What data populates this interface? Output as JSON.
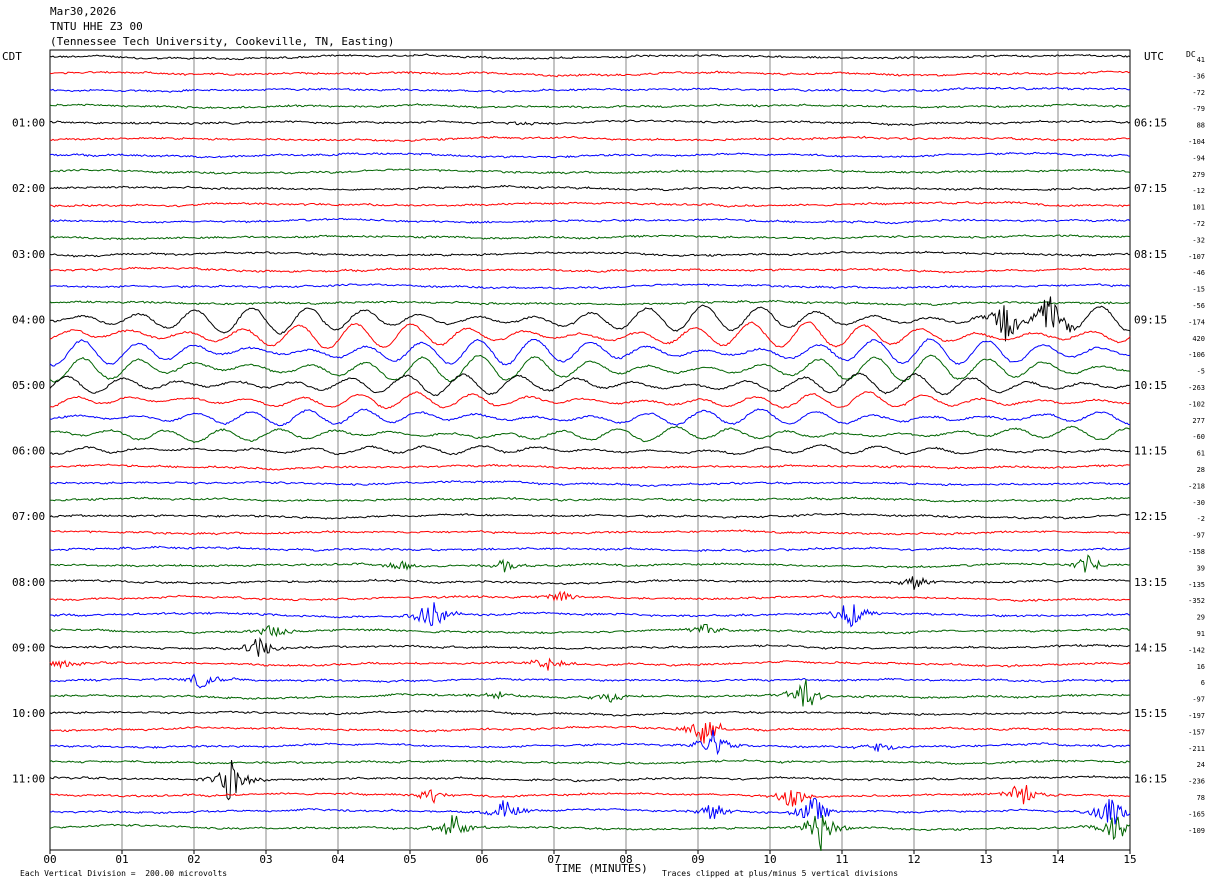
{
  "header": {
    "date": "Mar30,2026",
    "station": "TNTU HHE Z3 00",
    "location": "(Tennessee Tech University, Cookeville, TN, Easting)"
  },
  "left_zone_label": "CDT",
  "right_zone_label": "UTC",
  "dc_label": "DC",
  "footer": {
    "xlabel": "TIME (MINUTES)",
    "scale_note": "Each Vertical Division =  200.00 microvolts",
    "clip_note": "Traces clipped at plus/minus 5 vertical divisions"
  },
  "colors": {
    "line1": "#000000",
    "line2": "#ff0000",
    "line3": "#0000ff",
    "line4": "#006400",
    "grid": "#888888"
  },
  "chart_data": {
    "type": "line",
    "title": "TNTU HHE Z3 00",
    "xlabel": "TIME (MINUTES)",
    "xlim": [
      0,
      15
    ],
    "x_ticks": [
      "00",
      "01",
      "02",
      "03",
      "04",
      "05",
      "06",
      "07",
      "08",
      "09",
      "10",
      "11",
      "12",
      "13",
      "14",
      "15"
    ],
    "trace_minutes": 15,
    "left_hour_labels": [
      "01:00",
      "02:00",
      "03:00",
      "04:00",
      "05:00",
      "06:00",
      "07:00",
      "08:00",
      "09:00",
      "10:00",
      "11:00"
    ],
    "right_hour_labels": [
      "06:15",
      "07:15",
      "08:15",
      "09:15",
      "10:15",
      "11:15",
      "12:15",
      "13:15",
      "14:15",
      "15:15",
      "16:15"
    ],
    "dc_offsets": [
      41,
      -36,
      -72,
      -79,
      88,
      -104,
      -94,
      279,
      -12,
      101,
      -72,
      -32,
      -107,
      -46,
      -15,
      -56,
      -174,
      420,
      -106,
      -5,
      -263,
      -102,
      277,
      -60,
      61,
      28,
      -218,
      -30,
      -2,
      -97,
      -158,
      39,
      -135,
      -352,
      29,
      91,
      -142,
      16,
      6,
      -97,
      -197,
      -157,
      -211,
      24,
      -236,
      78,
      -165,
      -109
    ],
    "trace_colors": [
      "black",
      "red",
      "blue",
      "green"
    ],
    "events": [
      {
        "trace": 4,
        "minute": 6.5,
        "amp": 0.3
      },
      {
        "trace": 16,
        "minute": 7.5,
        "amp": 2.5,
        "kind": "microseism"
      },
      {
        "trace": 17,
        "minute": 7.5,
        "amp": 2.5,
        "kind": "microseism"
      },
      {
        "trace": 18,
        "minute": 7.5,
        "amp": 2.5,
        "kind": "microseism"
      },
      {
        "trace": 19,
        "minute": 7.5,
        "amp": 2.5,
        "kind": "microseism"
      },
      {
        "trace": 20,
        "minute": 7.5,
        "amp": 2.0,
        "kind": "microseism"
      },
      {
        "trace": 21,
        "minute": 7.5,
        "amp": 1.5,
        "kind": "microseism"
      },
      {
        "trace": 22,
        "minute": 7.5,
        "amp": 1.5,
        "kind": "microseism"
      },
      {
        "trace": 23,
        "minute": 7.5,
        "amp": 1.2,
        "kind": "microseism"
      },
      {
        "trace": 24,
        "minute": 7.5,
        "amp": 0.8,
        "kind": "microseism"
      },
      {
        "trace": 16,
        "minute": 13.3,
        "amp": 3.5
      },
      {
        "trace": 16,
        "minute": 13.9,
        "amp": 3.5
      },
      {
        "trace": 31,
        "minute": 4.9,
        "amp": 1.0
      },
      {
        "trace": 31,
        "minute": 6.3,
        "amp": 1.0
      },
      {
        "trace": 31,
        "minute": 14.4,
        "amp": 1.5
      },
      {
        "trace": 32,
        "minute": 12.0,
        "amp": 1.2
      },
      {
        "trace": 33,
        "minute": 7.1,
        "amp": 1.0
      },
      {
        "trace": 34,
        "minute": 5.3,
        "amp": 3.0
      },
      {
        "trace": 34,
        "minute": 11.1,
        "amp": 2.5
      },
      {
        "trace": 35,
        "minute": 3.1,
        "amp": 1.2
      },
      {
        "trace": 35,
        "minute": 9.1,
        "amp": 1.2
      },
      {
        "trace": 36,
        "minute": 2.9,
        "amp": 2.0
      },
      {
        "trace": 37,
        "minute": 0.2,
        "amp": 0.8
      },
      {
        "trace": 37,
        "minute": 6.9,
        "amp": 1.4
      },
      {
        "trace": 38,
        "minute": 2.1,
        "amp": 1.5
      },
      {
        "trace": 39,
        "minute": 6.2,
        "amp": 1.0
      },
      {
        "trace": 39,
        "minute": 7.8,
        "amp": 1.0
      },
      {
        "trace": 39,
        "minute": 10.5,
        "amp": 3.0
      },
      {
        "trace": 41,
        "minute": 9.1,
        "amp": 3.0
      },
      {
        "trace": 42,
        "minute": 9.2,
        "amp": 2.5
      },
      {
        "trace": 42,
        "minute": 11.5,
        "amp": 0.8
      },
      {
        "trace": 44,
        "minute": 2.5,
        "amp": 3.5
      },
      {
        "trace": 45,
        "minute": 5.3,
        "amp": 1.2
      },
      {
        "trace": 45,
        "minute": 10.3,
        "amp": 1.8
      },
      {
        "trace": 45,
        "minute": 13.5,
        "amp": 2.0
      },
      {
        "trace": 46,
        "minute": 6.3,
        "amp": 2.0
      },
      {
        "trace": 46,
        "minute": 9.2,
        "amp": 1.5
      },
      {
        "trace": 46,
        "minute": 10.6,
        "amp": 2.5
      },
      {
        "trace": 46,
        "minute": 14.7,
        "amp": 3.0
      },
      {
        "trace": 47,
        "minute": 5.6,
        "amp": 2.5
      },
      {
        "trace": 47,
        "minute": 10.7,
        "amp": 3.5
      },
      {
        "trace": 47,
        "minute": 14.8,
        "amp": 3.0
      }
    ]
  }
}
